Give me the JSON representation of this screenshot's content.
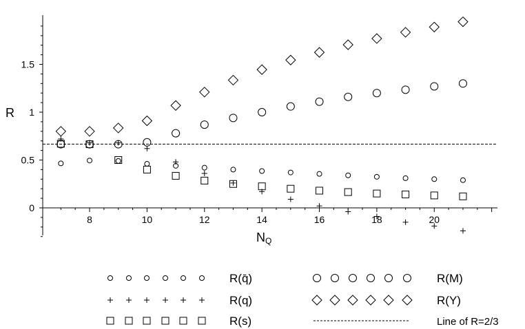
{
  "chart_data": {
    "type": "scatter",
    "title": "",
    "xlabel": "N",
    "xlabel_subscript": "Q",
    "ylabel": "R",
    "xlim": [
      6.8,
      22.2
    ],
    "ylim": [
      -0.3,
      2.0
    ],
    "x_ticks": [
      8,
      10,
      12,
      14,
      16,
      18,
      20
    ],
    "y_ticks": [
      0,
      0.5,
      1,
      1.5
    ],
    "y_tick_labels": [
      "0",
      "0.5",
      "1",
      "1.5"
    ],
    "x_tick_labels": [
      "8",
      "10",
      "12",
      "14",
      "16",
      "18",
      "20"
    ],
    "grid": false,
    "legend_position": "bottom",
    "x": [
      7,
      8,
      9,
      10,
      11,
      12,
      13,
      14,
      15,
      16,
      17,
      18,
      19,
      20,
      21
    ],
    "series": [
      {
        "name": "R(q̄)",
        "marker": "small-circle",
        "values": [
          0.465,
          0.495,
          0.49,
          0.46,
          0.44,
          0.42,
          0.4,
          0.385,
          0.37,
          0.355,
          0.34,
          0.325,
          0.31,
          0.3,
          0.29
        ]
      },
      {
        "name": "R(q)",
        "marker": "plus",
        "values": [
          0.72,
          0.68,
          0.68,
          0.62,
          0.48,
          0.36,
          0.26,
          0.17,
          0.09,
          0.02,
          -0.04,
          -0.09,
          -0.15,
          -0.19,
          -0.24
        ]
      },
      {
        "name": "R(s)",
        "marker": "square",
        "values": [
          0.67,
          0.665,
          0.5,
          0.4,
          0.335,
          0.285,
          0.25,
          0.225,
          0.2,
          0.18,
          0.165,
          0.15,
          0.14,
          0.13,
          0.12
        ]
      },
      {
        "name": "R(M)",
        "marker": "circle",
        "values": [
          0.665,
          0.665,
          0.665,
          0.685,
          0.78,
          0.87,
          0.94,
          1.0,
          1.06,
          1.11,
          1.16,
          1.2,
          1.235,
          1.27,
          1.3
        ]
      },
      {
        "name": "R(Y)",
        "marker": "diamond",
        "values": [
          0.8,
          0.8,
          0.835,
          0.91,
          1.07,
          1.21,
          1.335,
          1.445,
          1.545,
          1.625,
          1.705,
          1.77,
          1.835,
          1.89,
          1.945
        ]
      }
    ],
    "reference_line": {
      "name": "Line of R=2/3",
      "y": 0.6667,
      "style": "dashed"
    },
    "legend": [
      {
        "label": "R(q̄)",
        "marker": "small-circle"
      },
      {
        "label": "R(M)",
        "marker": "circle"
      },
      {
        "label": "R(q)",
        "marker": "plus"
      },
      {
        "label": "R(Y)",
        "marker": "diamond"
      },
      {
        "label": "R(s)",
        "marker": "square"
      },
      {
        "label": "Line of R=2/3",
        "marker": "dashed-line"
      }
    ]
  }
}
